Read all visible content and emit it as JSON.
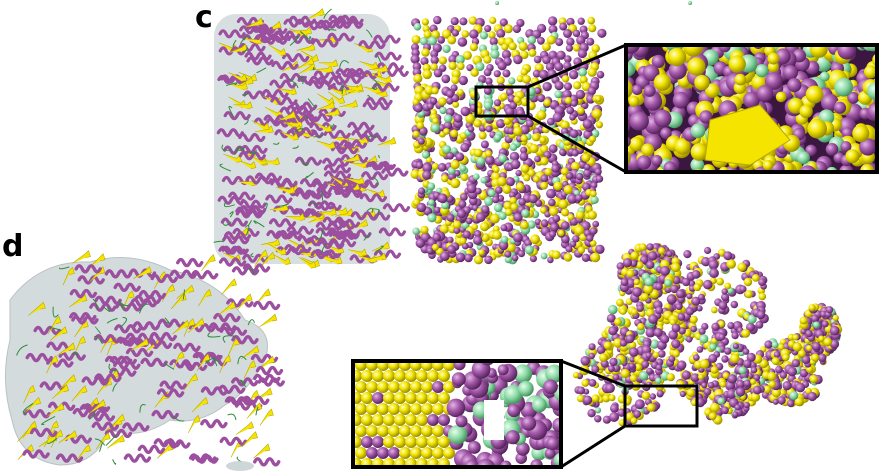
{
  "panels": {
    "c": {
      "label": "c"
    },
    "d": {
      "label": "d"
    }
  },
  "colors": {
    "helix": "#9b4f9e",
    "helix_dark": "#6a2c6e",
    "sheet": "#f5e400",
    "sheet_dark": "#b7a800",
    "loop": "#2e8b3d",
    "sphere_green": "#7fd19a",
    "surface": "#b8c4c8",
    "inset_border": "#000000"
  },
  "figure_elements": {
    "structure_views": [
      "ribbon-with-surface",
      "sphere-model"
    ],
    "insets": [
      "inset-c-zoom",
      "inset-d-zoom"
    ]
  }
}
